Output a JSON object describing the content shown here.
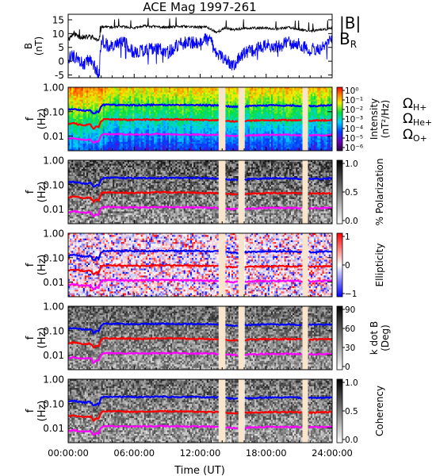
{
  "chart_data": {
    "type": "multi-panel spectrogram",
    "title": "ACE Mag 1997-261",
    "xlabel": "Time (UT)",
    "x_ticks": [
      "00:00:00",
      "06:00:00",
      "12:00:00",
      "18:00:00",
      "24:00:00"
    ],
    "xlim_hours": [
      0,
      24
    ],
    "data_gaps_hours": [
      [
        13.7,
        14.3
      ],
      [
        15.5,
        16.0
      ],
      [
        21.3,
        21.8
      ]
    ],
    "panels": [
      {
        "id": "b-field",
        "type": "line",
        "ylabel": "B\n(nT)",
        "ylim": [
          -6,
          17
        ],
        "y_ticks": [
          "-5",
          "0",
          "5",
          "10",
          "15"
        ],
        "legend": [
          {
            "label": "|B|",
            "color": "#000000"
          },
          {
            "label": "B",
            "sub": "R",
            "color": "#0000ff"
          }
        ],
        "series": [
          {
            "name": "|B|",
            "color": "#000000",
            "x": [
              0,
              0.5,
              1,
              1.5,
              2,
              2.5,
              2.8,
              3,
              3.5,
              4,
              5,
              6,
              7,
              8,
              9,
              10,
              11,
              12,
              12.5,
              13,
              13.5,
              14.3,
              15,
              16,
              17,
              18,
              19,
              20,
              21,
              22,
              23,
              24
            ],
            "values": [
              8,
              10,
              9,
              8.5,
              9,
              8,
              7,
              12.5,
              12.5,
              12.2,
              12.5,
              12,
              12.8,
              12.5,
              12.2,
              12.6,
              12.5,
              12.3,
              12.5,
              11.5,
              10.5,
              12,
              11.5,
              11.8,
              12,
              12,
              11.8,
              12.2,
              11.5,
              11,
              11.3,
              12
            ]
          },
          {
            "name": "B_R",
            "color": "#0000ff",
            "x": [
              0,
              0.5,
              1,
              1.5,
              2,
              2.5,
              2.8,
              3,
              3.5,
              4,
              5,
              6,
              7,
              8,
              9,
              10,
              11,
              12,
              12.5,
              13,
              13.5,
              14.3,
              15,
              16,
              17,
              18,
              19,
              20,
              21,
              22,
              23,
              24
            ],
            "values": [
              1,
              2,
              0,
              -1,
              1,
              -3,
              -4,
              8,
              6,
              5,
              7,
              3,
              4,
              5,
              3,
              6,
              7,
              6,
              8,
              7,
              2,
              1,
              -2,
              3,
              4,
              6,
              5,
              7,
              6,
              4,
              5,
              8
            ]
          }
        ]
      },
      {
        "id": "intensity",
        "type": "heatmap",
        "ylabel": "f\n(Hz)",
        "y_ticks": [
          "1.00",
          "0.10",
          "0.01"
        ],
        "colorbar": {
          "label": "Intensity\n(nT²/Hz)",
          "ticks": [
            "10⁰",
            "10⁻¹",
            "10⁻²",
            "10⁻³",
            "10⁻⁴",
            "10⁻⁵",
            "10⁻⁶"
          ],
          "colormap": "rainbow"
        },
        "legend": [
          {
            "label": "Ω",
            "sub": "H+",
            "color": "#0000ff"
          },
          {
            "label": "Ω",
            "sub": "He+",
            "color": "#ff0000"
          },
          {
            "label": "Ω",
            "sub": "O+",
            "color": "#ff00ff"
          }
        ]
      },
      {
        "id": "polarization",
        "type": "heatmap",
        "ylabel": "f\n(Hz)",
        "y_ticks": [
          "1.00",
          "0.10",
          "0.01"
        ],
        "colorbar": {
          "label": "% Polarization",
          "ticks": [
            "1.0",
            "0.5",
            "0.0"
          ],
          "colormap": "gray"
        }
      },
      {
        "id": "ellipticity",
        "type": "heatmap",
        "ylabel": "f\n(Hz)",
        "y_ticks": [
          "1.00",
          "0.10",
          "0.01"
        ],
        "colorbar": {
          "label": "Ellipticity",
          "ticks": [
            "1",
            "0",
            "−1"
          ],
          "colormap": "blue-white-red"
        }
      },
      {
        "id": "k-dot-b",
        "type": "heatmap",
        "ylabel": "f\n(Hz)",
        "y_ticks": [
          "1.00",
          "0.10",
          "0.01"
        ],
        "colorbar": {
          "label": "k dot B\n(Deg)",
          "ticks": [
            "90",
            "60",
            "30",
            "0"
          ],
          "colormap": "gray"
        }
      },
      {
        "id": "coherency",
        "type": "heatmap",
        "ylabel": "f\n(Hz)",
        "y_ticks": [
          "1.00",
          "0.10",
          "0.01"
        ],
        "colorbar": {
          "label": "Coherency",
          "ticks": [
            "1.0",
            "0.5",
            "0.0"
          ],
          "colormap": "gray"
        }
      }
    ],
    "gyrofrequency_lines": [
      {
        "name": "ΩH+",
        "color": "#0000ff",
        "x": [
          0,
          0.5,
          1,
          1.5,
          2,
          2.3,
          2.6,
          2.8,
          3,
          3.3,
          4,
          6,
          8,
          10,
          12,
          13.5,
          15,
          18,
          20,
          22,
          24
        ],
        "hz": [
          0.12,
          0.13,
          0.12,
          0.11,
          0.12,
          0.08,
          0.1,
          0.09,
          0.17,
          0.19,
          0.19,
          0.185,
          0.19,
          0.19,
          0.185,
          0.18,
          0.16,
          0.18,
          0.18,
          0.17,
          0.18
        ]
      },
      {
        "name": "ΩHe+",
        "color": "#ff0000",
        "x": [
          0,
          0.5,
          1,
          1.5,
          2,
          2.3,
          2.6,
          2.8,
          3,
          3.3,
          4,
          6,
          8,
          10,
          12,
          13.5,
          15,
          18,
          20,
          22,
          24
        ],
        "hz": [
          0.03,
          0.033,
          0.03,
          0.028,
          0.03,
          0.02,
          0.025,
          0.023,
          0.043,
          0.048,
          0.048,
          0.046,
          0.048,
          0.048,
          0.046,
          0.045,
          0.04,
          0.045,
          0.045,
          0.043,
          0.045
        ]
      },
      {
        "name": "ΩO+",
        "color": "#ff00ff",
        "x": [
          0,
          0.5,
          1,
          1.5,
          2,
          2.3,
          2.6,
          2.8,
          3,
          3.3,
          4,
          6,
          8,
          10,
          12,
          13.5,
          15,
          18,
          20,
          22,
          24
        ],
        "hz": [
          0.0075,
          0.0082,
          0.0075,
          0.007,
          0.0075,
          0.005,
          0.0063,
          0.0058,
          0.0108,
          0.012,
          0.012,
          0.0115,
          0.012,
          0.012,
          0.0115,
          0.0112,
          0.01,
          0.0112,
          0.0112,
          0.0107,
          0.0112
        ]
      }
    ]
  }
}
